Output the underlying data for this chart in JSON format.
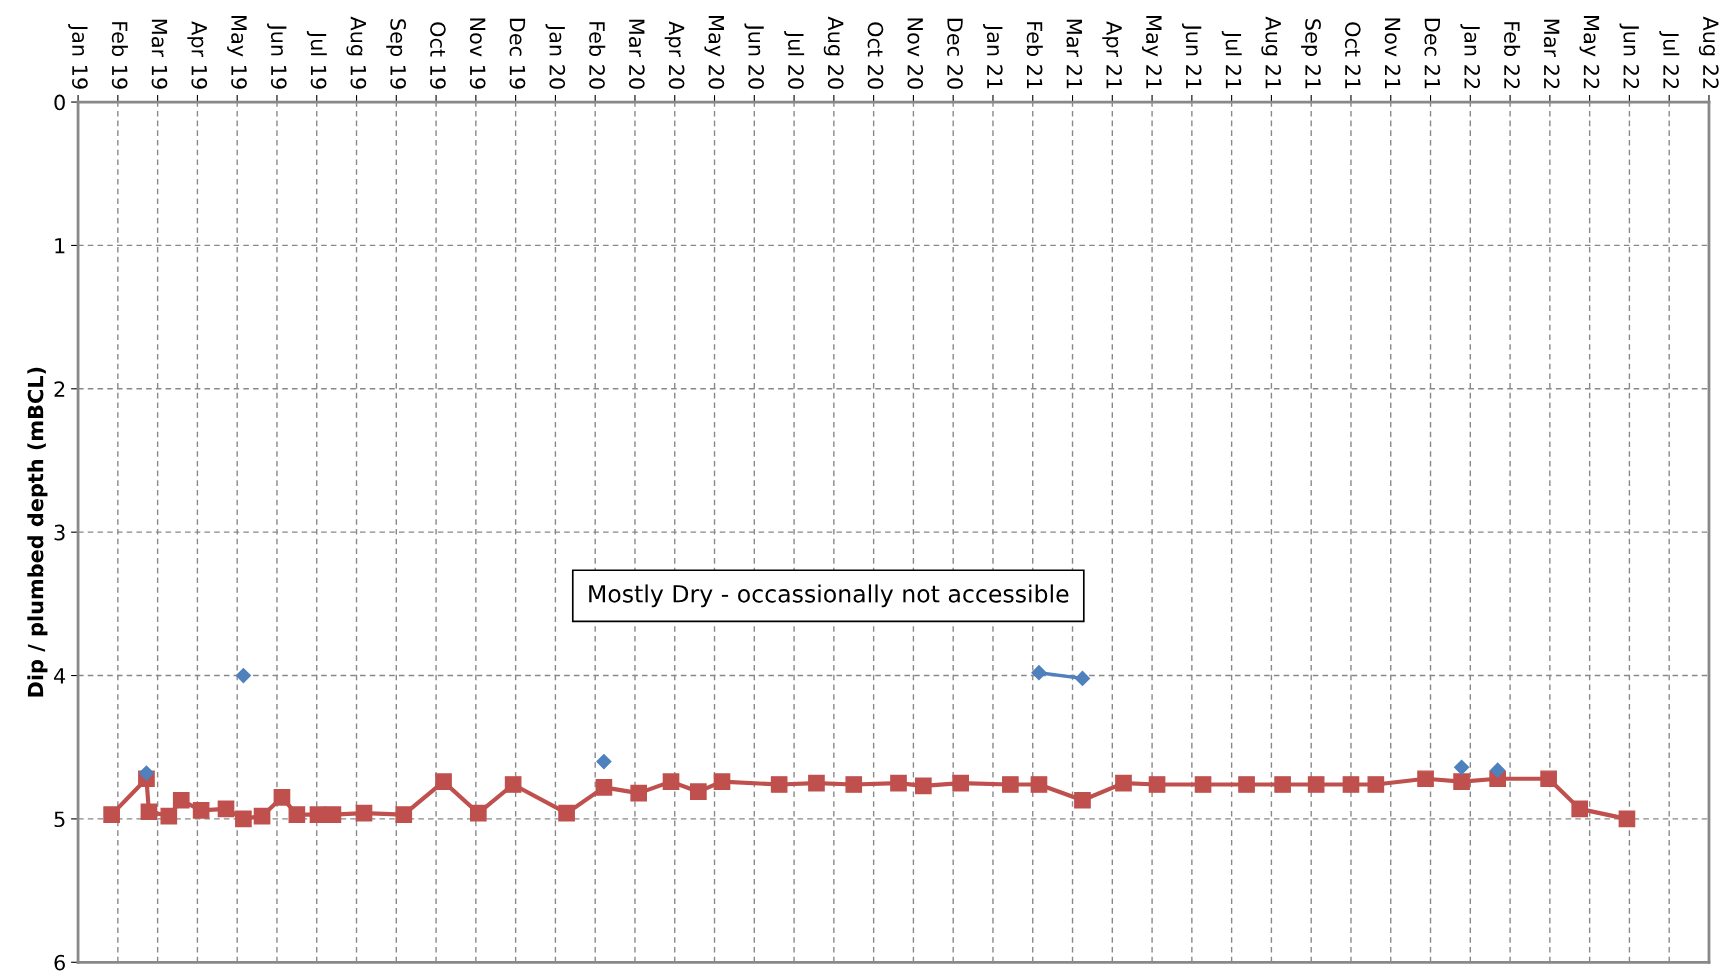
{
  "chart_data": {
    "type": "line",
    "ylabel": "Dip / plumbed depth (mBCL)",
    "annotations": [
      "Mostly Dry - occassionally not accessible"
    ],
    "ylim": [
      6,
      0
    ],
    "yticks": [
      0,
      1,
      2,
      3,
      4,
      5,
      6
    ],
    "xlim": [
      "2019-01-01",
      "2022-08-05"
    ],
    "xticks": [
      {
        "value": "2019-01-01",
        "label": "Jan 19"
      },
      {
        "value": "2019-02-02",
        "label": "Feb 19"
      },
      {
        "value": "2019-03-06",
        "label": "Mar 19"
      },
      {
        "value": "2019-04-07",
        "label": "Apr 19"
      },
      {
        "value": "2019-05-09",
        "label": "May 19"
      },
      {
        "value": "2019-06-10",
        "label": "Jun 19"
      },
      {
        "value": "2019-07-12",
        "label": "Jul 19"
      },
      {
        "value": "2019-08-13",
        "label": "Aug 19"
      },
      {
        "value": "2019-09-14",
        "label": "Sep 19"
      },
      {
        "value": "2019-10-16",
        "label": "Oct 19"
      },
      {
        "value": "2019-11-17",
        "label": "Nov 19"
      },
      {
        "value": "2019-12-19",
        "label": "Dec 19"
      },
      {
        "value": "2020-01-20",
        "label": "Jan 20"
      },
      {
        "value": "2020-02-21",
        "label": "Feb 20"
      },
      {
        "value": "2020-03-24",
        "label": "Mar 20"
      },
      {
        "value": "2020-04-25",
        "label": "Apr 20"
      },
      {
        "value": "2020-05-27",
        "label": "May 20"
      },
      {
        "value": "2020-06-28",
        "label": "Jun 20"
      },
      {
        "value": "2020-07-30",
        "label": "Jul 20"
      },
      {
        "value": "2020-08-31",
        "label": "Aug 20"
      },
      {
        "value": "2020-10-02",
        "label": "Oct 20"
      },
      {
        "value": "2020-11-03",
        "label": "Nov 20"
      },
      {
        "value": "2020-12-05",
        "label": "Dec 20"
      },
      {
        "value": "2021-01-06",
        "label": "Jan 21"
      },
      {
        "value": "2021-02-07",
        "label": "Feb 21"
      },
      {
        "value": "2021-03-11",
        "label": "Mar 21"
      },
      {
        "value": "2021-04-12",
        "label": "Apr 21"
      },
      {
        "value": "2021-05-14",
        "label": "May 21"
      },
      {
        "value": "2021-06-15",
        "label": "Jun 21"
      },
      {
        "value": "2021-07-17",
        "label": "Jul 21"
      },
      {
        "value": "2021-08-18",
        "label": "Aug 21"
      },
      {
        "value": "2021-09-19",
        "label": "Sep 21"
      },
      {
        "value": "2021-10-21",
        "label": "Oct 21"
      },
      {
        "value": "2021-11-22",
        "label": "Nov 21"
      },
      {
        "value": "2021-12-24",
        "label": "Dec 21"
      },
      {
        "value": "2022-01-25",
        "label": "Jan 22"
      },
      {
        "value": "2022-02-26",
        "label": "Feb 22"
      },
      {
        "value": "2022-03-30",
        "label": "Mar 22"
      },
      {
        "value": "2022-05-01",
        "label": "May 22"
      },
      {
        "value": "2022-06-02",
        "label": "Jun 22"
      },
      {
        "value": "2022-07-04",
        "label": "Jul 22"
      },
      {
        "value": "2022-08-05",
        "label": "Aug 22"
      }
    ],
    "grid": true,
    "series": [
      {
        "color": "#c0504d",
        "marker": "square",
        "line_style": "solid",
        "x": [
          "2019-01-28",
          "2019-02-25",
          "2019-02-27",
          "2019-03-15",
          "2019-03-25",
          "2019-04-10",
          "2019-04-30",
          "2019-05-14",
          "2019-05-29",
          "2019-06-14",
          "2019-06-26",
          "2019-07-13",
          "2019-07-25",
          "2019-08-19",
          "2019-09-20",
          "2019-10-22",
          "2019-11-19",
          "2019-12-17",
          "2020-01-29",
          "2020-02-28",
          "2020-03-27",
          "2020-04-22",
          "2020-05-14",
          "2020-06-02",
          "2020-07-18",
          "2020-08-17",
          "2020-09-16",
          "2020-10-22",
          "2020-11-11",
          "2020-12-11",
          "2021-01-20",
          "2021-02-12",
          "2021-03-19",
          "2021-04-21",
          "2021-05-18",
          "2021-06-24",
          "2021-07-29",
          "2021-08-27",
          "2021-09-23",
          "2021-10-21",
          "2021-11-10",
          "2021-12-20",
          "2022-01-18",
          "2022-02-16",
          "2022-03-29",
          "2022-04-23",
          "2022-05-31"
        ],
        "values": [
          4.97,
          4.72,
          4.95,
          4.98,
          4.87,
          4.94,
          4.93,
          5.0,
          4.98,
          4.85,
          4.97,
          4.97,
          4.97,
          4.96,
          4.97,
          4.74,
          4.96,
          4.76,
          4.96,
          4.78,
          4.82,
          4.74,
          4.81,
          4.74,
          4.76,
          4.75,
          4.76,
          4.75,
          4.77,
          4.75,
          4.76,
          4.76,
          4.87,
          4.75,
          4.76,
          4.76,
          4.76,
          4.76,
          4.76,
          4.76,
          4.76,
          4.72,
          4.74,
          4.72,
          4.72,
          4.93,
          5.0
        ]
      },
      {
        "color": "#4f81bd",
        "marker": "diamond",
        "line_style": "solid",
        "x": [
          "2019-02-25",
          "2019-04-01",
          "2019-05-14",
          "2019-09-01",
          "2020-02-28",
          "2020-09-01",
          "2021-02-12",
          "2021-03-19",
          "2021-09-01",
          "2022-01-18",
          "2022-02-01",
          "2022-02-16"
        ],
        "values": [
          4.68,
          null,
          4.0,
          null,
          4.6,
          null,
          3.98,
          4.02,
          null,
          4.64,
          null,
          4.66
        ]
      }
    ]
  }
}
